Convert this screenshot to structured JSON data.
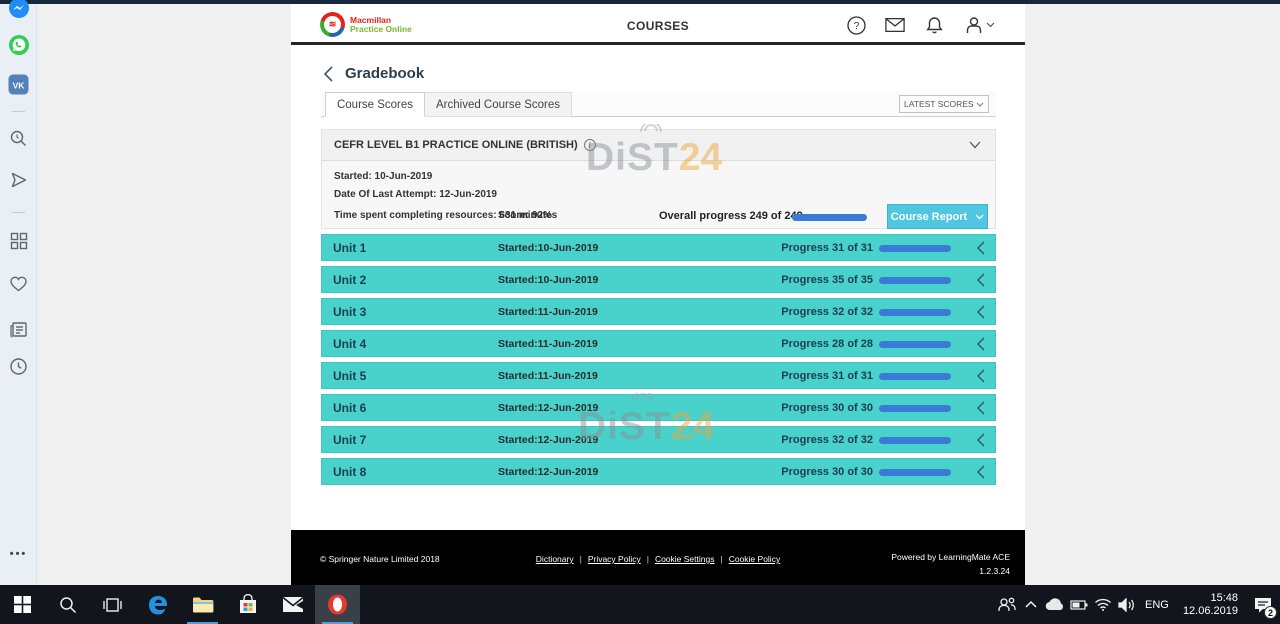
{
  "header": {
    "logo_line1": "Macmillan",
    "logo_line2": "Practice Online",
    "logo_mark": "≋",
    "nav_label": "COURSES",
    "icons": [
      "help-icon",
      "mail-icon",
      "notifications-icon",
      "account-icon"
    ]
  },
  "page": {
    "title": "Gradebook",
    "tabs": {
      "active": "Course Scores",
      "inactive": "Archived Course Scores"
    },
    "sort_dropdown": "LATEST SCORES",
    "course": {
      "name": "CEFR LEVEL B1 PRACTICE ONLINE (BRITISH)",
      "info_icon": "i",
      "started": "Started: 10-Jun-2019",
      "last_attempt": "Date Of Last Attempt: 12-Jun-2019",
      "time_spent": "Time spent completing resources: 631 minutes",
      "score": "Score: 92%",
      "overall_progress": "Overall progress 249 of 249",
      "overall_done": 249,
      "overall_total": 249,
      "report_button": "Course Report"
    },
    "units": [
      {
        "name": "Unit 1",
        "started": "Started:10-Jun-2019",
        "progress": "Progress 31 of 31",
        "done": 31,
        "total": 31
      },
      {
        "name": "Unit 2",
        "started": "Started:10-Jun-2019",
        "progress": "Progress 35 of 35",
        "done": 35,
        "total": 35
      },
      {
        "name": "Unit 3",
        "started": "Started:11-Jun-2019",
        "progress": "Progress 32 of 32",
        "done": 32,
        "total": 32
      },
      {
        "name": "Unit 4",
        "started": "Started:11-Jun-2019",
        "progress": "Progress 28 of 28",
        "done": 28,
        "total": 28
      },
      {
        "name": "Unit 5",
        "started": "Started:11-Jun-2019",
        "progress": "Progress 31 of 31",
        "done": 31,
        "total": 31
      },
      {
        "name": "Unit 6",
        "started": "Started:12-Jun-2019",
        "progress": "Progress 30 of 30",
        "done": 30,
        "total": 30
      },
      {
        "name": "Unit 7",
        "started": "Started:12-Jun-2019",
        "progress": "Progress 32 of 32",
        "done": 32,
        "total": 32
      },
      {
        "name": "Unit 8",
        "started": "Started:12-Jun-2019",
        "progress": "Progress 30 of 30",
        "done": 30,
        "total": 30
      }
    ]
  },
  "footer": {
    "copyright": "© Springer Nature Limited 2018",
    "links": [
      "Dictionary",
      "Privacy Policy",
      "Cookie Settings",
      "Cookie Policy"
    ],
    "powered_by": "Powered by LearningMate ACE",
    "version": "1.2.3.24"
  },
  "watermark": {
    "gray": "DiST",
    "orange": "24"
  },
  "sidebar_icons": [
    "messenger-icon",
    "whatsapp-icon",
    "vk-icon",
    "search-icon",
    "flow-arrow-icon",
    "speed-dial-icon",
    "bookmarks-heart-icon",
    "news-icon",
    "history-clock-icon",
    "more-dots-icon"
  ],
  "taskbar": {
    "app_icons": [
      "start",
      "search",
      "task-view",
      "edge",
      "file-explorer",
      "store",
      "mail",
      "opera"
    ],
    "lang": "ENG",
    "time": "15:48",
    "date": "12.06.2019",
    "badge_count": "2"
  },
  "colors": {
    "unit_bar": "#49d1cc",
    "progress_blue": "#3a7bd5",
    "report_button": "#4fc7e0",
    "logo_red": "#e2231a",
    "logo_green": "#7ab929",
    "watermark_orange": "#f0a53a"
  }
}
